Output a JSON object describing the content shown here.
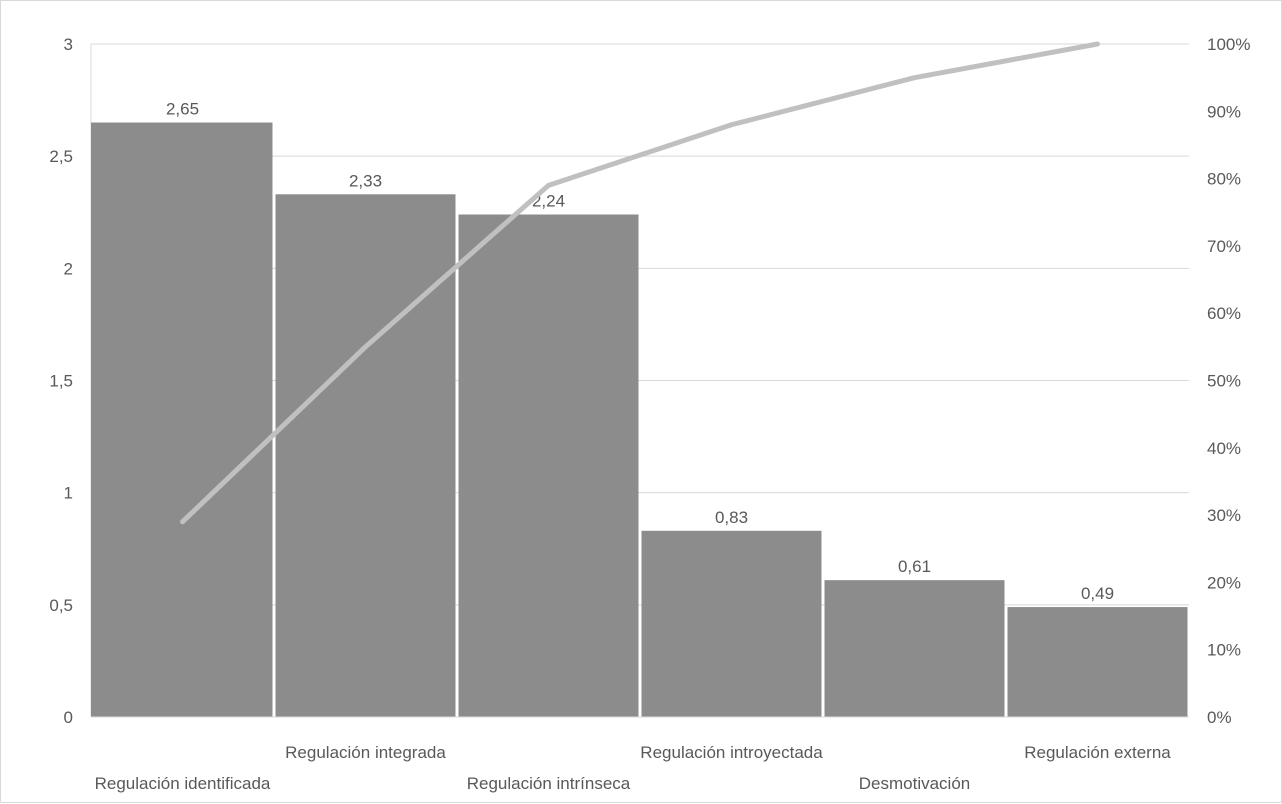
{
  "chart_data": {
    "type": "bar",
    "combo": "pareto",
    "categories": [
      "Regulación identificada",
      "Regulación integrada",
      "Regulación intrínseca",
      "Regulación introyectada",
      "Desmotivación",
      "Regulación externa"
    ],
    "values": [
      2.65,
      2.33,
      2.24,
      0.83,
      0.61,
      0.49
    ],
    "value_labels": [
      "2,65",
      "2,33",
      "2,24",
      "0,83",
      "0,61",
      "0,49"
    ],
    "cumulative_percent": [
      29,
      55,
      79,
      88,
      95,
      100
    ],
    "ylim": [
      0,
      3
    ],
    "y_ticks": [
      "0",
      "0,5",
      "1",
      "1,5",
      "2",
      "2,5",
      "3"
    ],
    "y2lim": [
      0,
      100
    ],
    "y2_ticks": [
      "0%",
      "10%",
      "20%",
      "30%",
      "40%",
      "50%",
      "60%",
      "70%",
      "80%",
      "90%",
      "100%"
    ],
    "grid": true,
    "legend": "none",
    "colors": {
      "bar": "#8c8c8c",
      "line": "#c0c0c0",
      "grid": "#d9d9d9",
      "text": "#595959"
    }
  }
}
